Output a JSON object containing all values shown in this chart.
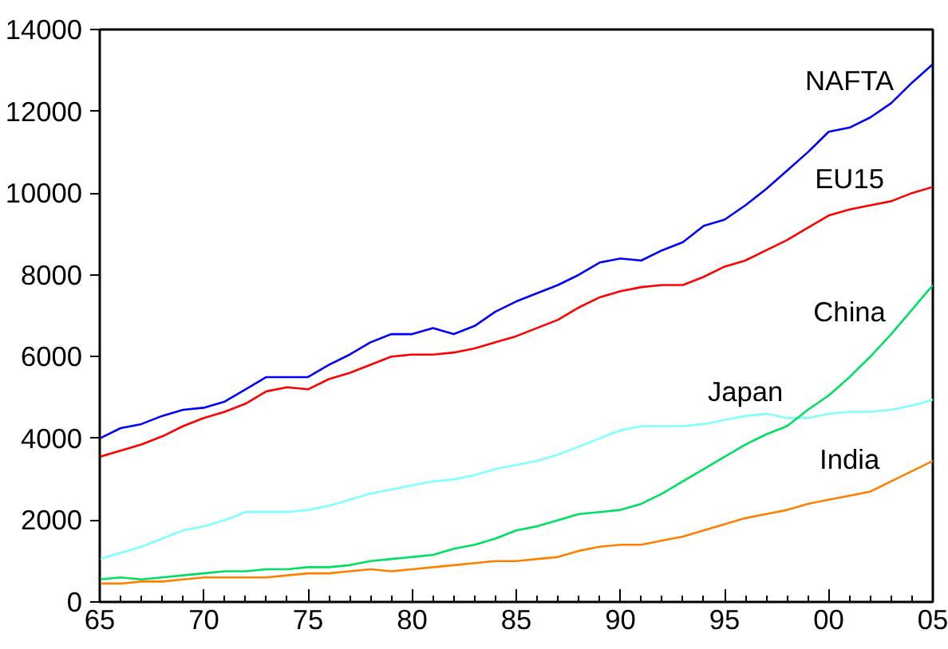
{
  "chart_data": {
    "type": "line",
    "x": [
      1965,
      1966,
      1967,
      1968,
      1969,
      1970,
      1971,
      1972,
      1973,
      1974,
      1975,
      1976,
      1977,
      1978,
      1979,
      1980,
      1981,
      1982,
      1983,
      1984,
      1985,
      1986,
      1987,
      1988,
      1989,
      1990,
      1991,
      1992,
      1993,
      1994,
      1995,
      1996,
      1997,
      1998,
      1999,
      2000,
      2001,
      2002,
      2003,
      2004,
      2005
    ],
    "series": [
      {
        "name": "NAFTA",
        "color": "#0000ff",
        "values": [
          4000,
          4250,
          4350,
          4550,
          4700,
          4750,
          4900,
          5200,
          5500,
          5500,
          5500,
          5800,
          6050,
          6350,
          6550,
          6550,
          6700,
          6550,
          6750,
          7100,
          7350,
          7550,
          7750,
          8000,
          8300,
          8400,
          8350,
          8600,
          8800,
          9200,
          9350,
          9700,
          10100,
          10550,
          11000,
          11500,
          11600,
          11850,
          12200,
          12700,
          13150
        ]
      },
      {
        "name": "EU15",
        "color": "#ff0000",
        "values": [
          3550,
          3700,
          3850,
          4050,
          4300,
          4500,
          4650,
          4850,
          5150,
          5250,
          5200,
          5450,
          5600,
          5800,
          6000,
          6050,
          6050,
          6100,
          6200,
          6350,
          6500,
          6700,
          6900,
          7200,
          7450,
          7600,
          7700,
          7750,
          7750,
          7950,
          8200,
          8350,
          8600,
          8850,
          9150,
          9450,
          9600,
          9700,
          9800,
          10000,
          10150
        ]
      },
      {
        "name": "Japan",
        "color": "#80ffff",
        "values": [
          1050,
          1200,
          1350,
          1550,
          1750,
          1850,
          2000,
          2200,
          2200,
          2200,
          2250,
          2350,
          2500,
          2650,
          2750,
          2850,
          2950,
          3000,
          3100,
          3250,
          3350,
          3450,
          3600,
          3800,
          4000,
          4200,
          4300,
          4300,
          4300,
          4350,
          4450,
          4550,
          4600,
          4500,
          4500,
          4600,
          4650,
          4650,
          4700,
          4800,
          4950
        ]
      },
      {
        "name": "China",
        "color": "#00e060",
        "values": [
          550,
          600,
          550,
          600,
          650,
          700,
          750,
          750,
          800,
          800,
          850,
          850,
          900,
          1000,
          1050,
          1100,
          1150,
          1300,
          1400,
          1550,
          1750,
          1850,
          2000,
          2150,
          2200,
          2250,
          2400,
          2650,
          2950,
          3250,
          3550,
          3850,
          4100,
          4300,
          4700,
          5050,
          5500,
          6000,
          6550,
          7150,
          7750
        ]
      },
      {
        "name": "India",
        "color": "#ff8000",
        "values": [
          450,
          450,
          500,
          500,
          550,
          600,
          600,
          600,
          600,
          650,
          700,
          700,
          750,
          800,
          750,
          800,
          850,
          900,
          950,
          1000,
          1000,
          1050,
          1100,
          1250,
          1350,
          1400,
          1400,
          1500,
          1600,
          1750,
          1900,
          2050,
          2150,
          2250,
          2400,
          2500,
          2600,
          2700,
          2950,
          3200,
          3450
        ]
      }
    ],
    "xlim": [
      1965,
      2005
    ],
    "xticks": [
      {
        "value": 1965,
        "label": "65"
      },
      {
        "value": 1970,
        "label": "70"
      },
      {
        "value": 1975,
        "label": "75"
      },
      {
        "value": 1980,
        "label": "80"
      },
      {
        "value": 1985,
        "label": "85"
      },
      {
        "value": 1990,
        "label": "90"
      },
      {
        "value": 1995,
        "label": "95"
      },
      {
        "value": 2000,
        "label": "00"
      },
      {
        "value": 2005,
        "label": "05"
      }
    ],
    "ylim": [
      0,
      14000
    ],
    "yticks": [
      0,
      2000,
      4000,
      6000,
      8000,
      10000,
      12000,
      14000
    ],
    "grid": false,
    "marker": "none",
    "line_style": "solid"
  }
}
